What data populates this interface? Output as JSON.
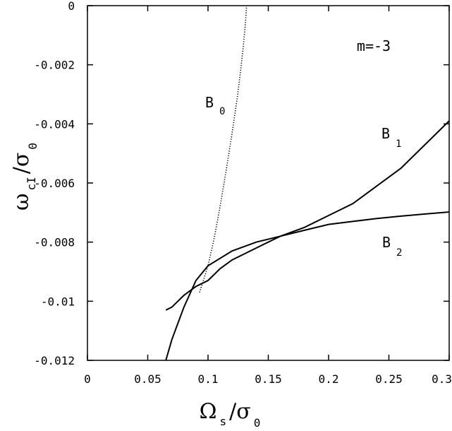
{
  "chart_data": {
    "type": "line",
    "xlim": [
      0,
      0.3
    ],
    "ylim": [
      -0.012,
      0
    ],
    "x_ticks": [
      0,
      0.05,
      0.1,
      0.15,
      0.2,
      0.25,
      0.3
    ],
    "x_tick_labels": [
      "0",
      "0.05",
      "0.1",
      "0.15",
      "0.2",
      "0.25",
      "0.3"
    ],
    "y_ticks": [
      0,
      -0.002,
      -0.004,
      -0.006,
      -0.008,
      -0.01,
      -0.012
    ],
    "y_tick_labels": [
      "0",
      "-0.002",
      "-0.004",
      "-0.006",
      "-0.008",
      "-0.01",
      "-0.012"
    ],
    "xlabel": {
      "main": "Ω",
      "sub1": "s",
      "slash": "/σ",
      "sub2": "0"
    },
    "ylabel": {
      "main": "ω",
      "sub1": "cI",
      "slash": "/σ",
      "sub2": "0"
    },
    "annotation": "m=-3",
    "grid": false,
    "series": [
      {
        "name": "B0",
        "label_main": "B",
        "label_sub": "0",
        "style": "dotted",
        "x": [
          0.093,
          0.1,
          0.105,
          0.11,
          0.115,
          0.12,
          0.124,
          0.127,
          0.1295,
          0.131,
          0.132
        ],
        "y": [
          -0.0097,
          -0.0088,
          -0.0079,
          -0.0068,
          -0.0056,
          -0.0043,
          -0.0032,
          -0.0022,
          -0.0013,
          -0.0006,
          0.0
        ]
      },
      {
        "name": "B1",
        "label_main": "B",
        "label_sub": "1",
        "style": "solid",
        "x": [
          0.065,
          0.07,
          0.08,
          0.09,
          0.1,
          0.12,
          0.14,
          0.16,
          0.18,
          0.2,
          0.22,
          0.24,
          0.26,
          0.28,
          0.3
        ],
        "y": [
          -0.012,
          -0.0113,
          -0.0102,
          -0.0093,
          -0.0088,
          -0.0083,
          -0.008,
          -0.0078,
          -0.0075,
          -0.0071,
          -0.0067,
          -0.0061,
          -0.0055,
          -0.0047,
          -0.0039
        ]
      },
      {
        "name": "B2",
        "label_main": "B",
        "label_sub": "2",
        "style": "solid",
        "x": [
          0.065,
          0.07,
          0.08,
          0.09,
          0.1,
          0.11,
          0.12,
          0.14,
          0.16,
          0.18,
          0.2,
          0.22,
          0.24,
          0.26,
          0.28,
          0.3
        ],
        "y": [
          -0.0103,
          -0.0102,
          -0.0098,
          -0.0095,
          -0.0093,
          -0.0089,
          -0.0086,
          -0.0082,
          -0.0078,
          -0.0076,
          -0.0074,
          -0.0073,
          -0.0072,
          -0.00712,
          -0.00705,
          -0.00698
        ]
      }
    ]
  }
}
